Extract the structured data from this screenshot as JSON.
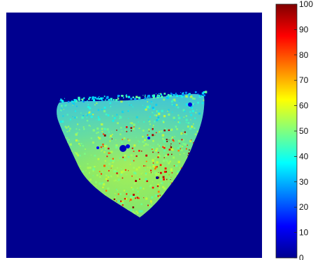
{
  "chart_data": {
    "type": "heatmap",
    "title": "",
    "xlabel": "",
    "ylabel": "",
    "colorbar": {
      "colormap": "jet",
      "range": [
        0,
        100
      ],
      "ticks": [
        0,
        10,
        20,
        30,
        40,
        50,
        60,
        70,
        80,
        90,
        100
      ],
      "tick_labels": [
        "0",
        "10",
        "20",
        "30",
        "40",
        "50",
        "60",
        "70",
        "80",
        "90",
        "100"
      ]
    },
    "background_value": 0,
    "blob": {
      "dominant_value_range": [
        45,
        60
      ],
      "upper_edge_value_range": [
        30,
        45
      ],
      "hotspot_value_range": [
        75,
        100
      ],
      "cold_hole_value_range": [
        0,
        15
      ]
    },
    "grid": false
  }
}
